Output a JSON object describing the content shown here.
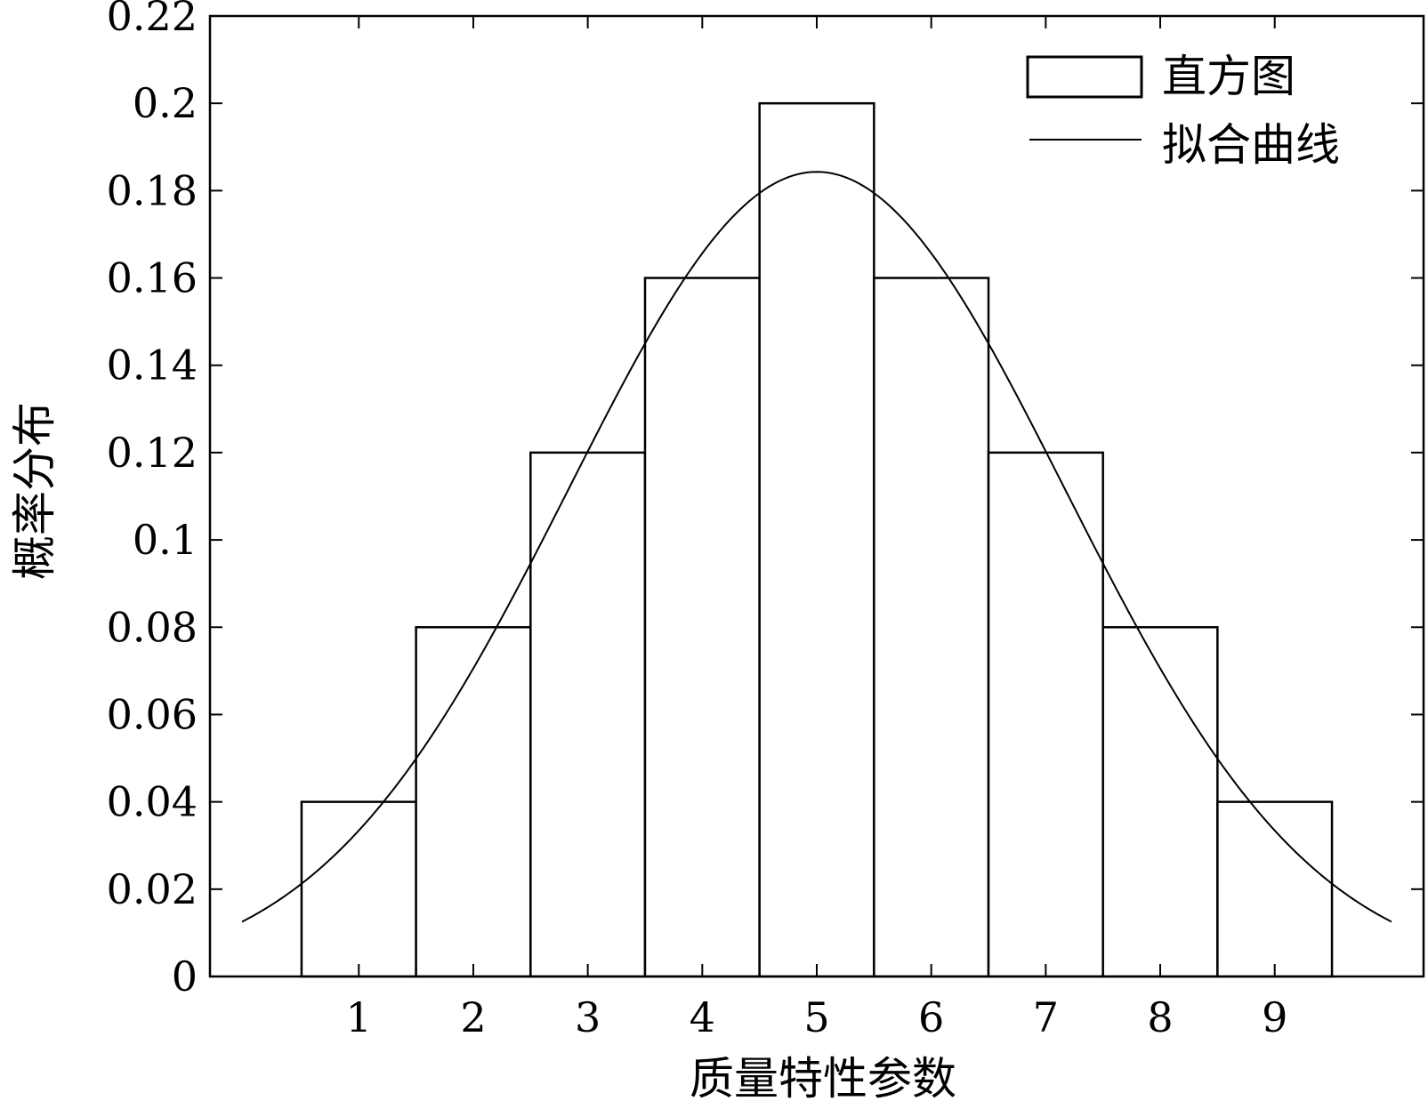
{
  "chart_data": {
    "type": "bar",
    "title": "",
    "xlabel": "质量特性参数",
    "ylabel": "概率分布",
    "categories": [
      "1",
      "2",
      "3",
      "4",
      "5",
      "6",
      "7",
      "8",
      "9"
    ],
    "series": [
      {
        "name": "直方图",
        "kind": "histogram",
        "x": [
          1,
          2,
          3,
          4,
          5,
          6,
          7,
          8,
          9
        ],
        "values": [
          0.04,
          0.08,
          0.12,
          0.16,
          0.2,
          0.16,
          0.12,
          0.08,
          0.04
        ]
      },
      {
        "name": "拟合曲线",
        "kind": "fitted-normal-curve",
        "mean": 5,
        "std": 2.165,
        "peak": 0.1843,
        "x_range": [
          -0.02,
          10.02
        ]
      }
    ],
    "xlim": [
      -0.3,
      10.3
    ],
    "ylim": [
      0,
      0.22
    ],
    "xticks": [
      1,
      2,
      3,
      4,
      5,
      6,
      7,
      8,
      9
    ],
    "yticks": [
      0,
      0.02,
      0.04,
      0.06,
      0.08,
      0.1,
      0.12,
      0.14,
      0.16,
      0.18,
      0.2,
      0.22
    ],
    "ytick_labels": [
      "0",
      "0.02",
      "0.04",
      "0.06",
      "0.08",
      "0.1",
      "0.12",
      "0.14",
      "0.16",
      "0.18",
      "0.2",
      "0.22"
    ],
    "legend": {
      "position": "top-right",
      "entries": [
        "直方图",
        "拟合曲线"
      ]
    },
    "grid": false,
    "colors": {
      "bars_fill": "#ffffff",
      "bars_stroke": "#000000",
      "curve": "#000000",
      "axes": "#000000"
    }
  }
}
